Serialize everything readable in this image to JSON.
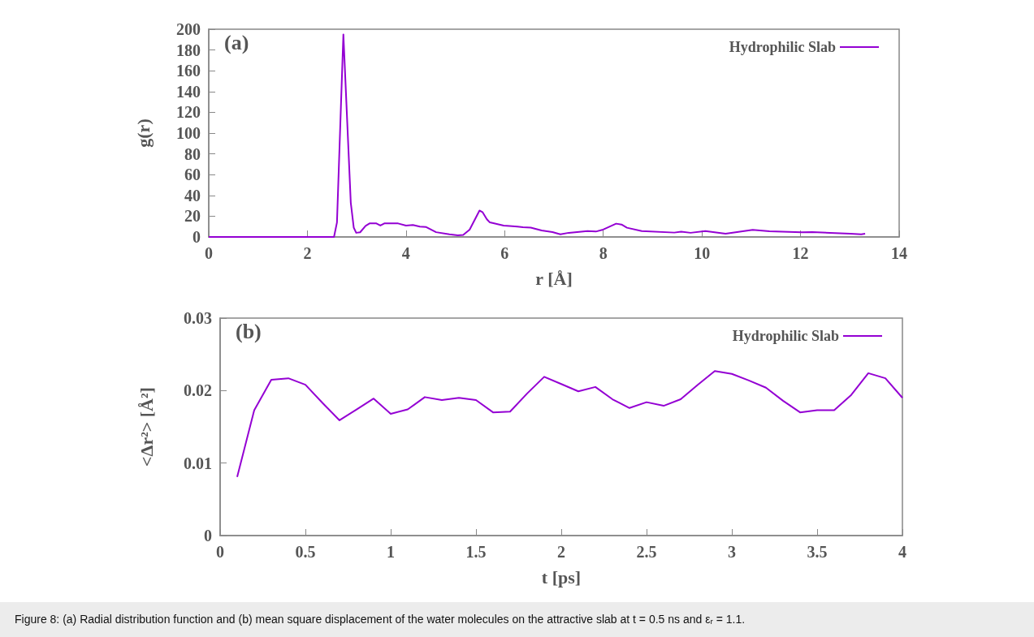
{
  "chart_data": [
    {
      "type": "line",
      "title": "(a)",
      "xlabel": "r [Å]",
      "ylabel": "g(r)",
      "xlim": [
        0,
        14
      ],
      "xticks": [
        0,
        2,
        4,
        6,
        8,
        10,
        12,
        14
      ],
      "ylim": [
        0,
        200
      ],
      "yticks": [
        0,
        20,
        40,
        60,
        80,
        100,
        120,
        140,
        160,
        180,
        200
      ],
      "legend": "top right",
      "grid": false,
      "marker": "none",
      "line_style": "solid",
      "series": [
        {
          "name": "Hydrophilic Slab",
          "color": "#9400d3",
          "x": [
            0,
            2.54,
            2.6,
            2.73,
            2.88,
            2.94,
            2.99,
            3.07,
            3.18,
            3.26,
            3.4,
            3.48,
            3.56,
            3.84,
            4.0,
            4.14,
            4.28,
            4.41,
            4.61,
            4.88,
            5.05,
            5.16,
            5.29,
            5.49,
            5.55,
            5.64,
            5.7,
            5.98,
            6.1,
            6.26,
            6.37,
            6.53,
            6.75,
            6.97,
            7.13,
            7.3,
            7.68,
            7.85,
            7.98,
            8.26,
            8.37,
            8.48,
            8.78,
            9.44,
            9.58,
            9.77,
            10.07,
            10.48,
            11.03,
            11.37,
            12.02,
            12.24,
            13.01,
            13.23,
            13.31
          ],
          "values": [
            0,
            0,
            14,
            195,
            33,
            9,
            4,
            4.5,
            10.7,
            13,
            13,
            11,
            13,
            13,
            11,
            11.5,
            10,
            9.5,
            4.6,
            2.5,
            1.5,
            2,
            7,
            25.4,
            24,
            17,
            14,
            11,
            10.5,
            10,
            9.4,
            9,
            6.2,
            4.7,
            2.6,
            4,
            5.7,
            5.2,
            6.8,
            12.8,
            12,
            8.9,
            5.7,
            4.2,
            5,
            4,
            5.7,
            3.1,
            6.8,
            5.5,
            4.4,
            4.7,
            3.1,
            2.6,
            3.1
          ]
        }
      ]
    },
    {
      "type": "line",
      "title": "(b)",
      "xlabel": "t [ps]",
      "ylabel": "<Δr²> [Å²]",
      "xlim": [
        0,
        4
      ],
      "xticks": [
        0,
        0.5,
        1,
        1.5,
        2,
        2.5,
        3,
        3.5,
        4
      ],
      "ylim": [
        0,
        0.03
      ],
      "yticks": [
        0,
        0.01,
        0.02,
        0.03
      ],
      "legend": "top right",
      "grid": false,
      "marker": "none",
      "line_style": "solid",
      "annotations": [
        "Figure 8: (a) Radial distribution function and (b) mean square displacement of the water molecules on the attractive slab at t = 0.5 ns and εᵣ = 1.1."
      ],
      "series": [
        {
          "name": "Hydrophilic Slab",
          "color": "#9400d3",
          "x": [
            0.1,
            0.2,
            0.3,
            0.4,
            0.5,
            0.6,
            0.7,
            0.8,
            0.9,
            1.0,
            1.1,
            1.2,
            1.3,
            1.4,
            1.5,
            1.6,
            1.7,
            1.8,
            1.9,
            2.0,
            2.1,
            2.2,
            2.3,
            2.4,
            2.5,
            2.6,
            2.7,
            2.8,
            2.9,
            3.0,
            3.1,
            3.2,
            3.3,
            3.4,
            3.5,
            3.6,
            3.7,
            3.8,
            3.9,
            4.0
          ],
          "values": [
            0.0081,
            0.0173,
            0.0215,
            0.0217,
            0.0208,
            0.0183,
            0.0159,
            0.0174,
            0.0189,
            0.0168,
            0.0174,
            0.0191,
            0.0187,
            0.019,
            0.0187,
            0.017,
            0.0171,
            0.0196,
            0.0219,
            0.0209,
            0.0199,
            0.0205,
            0.0188,
            0.0176,
            0.0184,
            0.0179,
            0.0188,
            0.0208,
            0.0227,
            0.0223,
            0.0214,
            0.0204,
            0.0186,
            0.017,
            0.0173,
            0.0173,
            0.0194,
            0.0224,
            0.0217,
            0.019
          ]
        }
      ]
    }
  ]
}
